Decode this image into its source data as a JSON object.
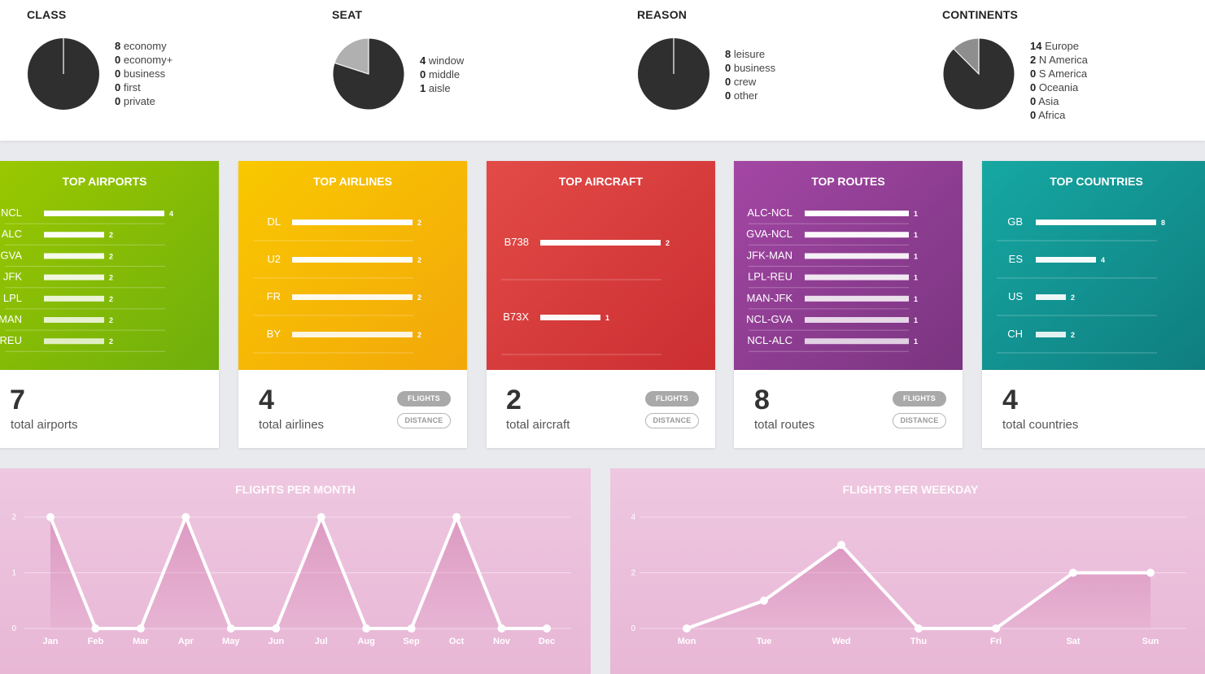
{
  "stats": [
    {
      "title": "CLASS",
      "pie": [
        8,
        0,
        0,
        0,
        0
      ],
      "items": [
        {
          "count": "8",
          "label": "economy"
        },
        {
          "count": "0",
          "label": "economy+"
        },
        {
          "count": "0",
          "label": "business"
        },
        {
          "count": "0",
          "label": "first"
        },
        {
          "count": "0",
          "label": "private"
        }
      ]
    },
    {
      "title": "SEAT",
      "pie": [
        4,
        0,
        1
      ],
      "items": [
        {
          "count": "4",
          "label": "window"
        },
        {
          "count": "0",
          "label": "middle"
        },
        {
          "count": "1",
          "label": "aisle"
        }
      ]
    },
    {
      "title": "REASON",
      "pie": [
        8,
        0,
        0,
        0
      ],
      "items": [
        {
          "count": "8",
          "label": "leisure"
        },
        {
          "count": "0",
          "label": "business"
        },
        {
          "count": "0",
          "label": "crew"
        },
        {
          "count": "0",
          "label": "other"
        }
      ]
    },
    {
      "title": "CONTINENTS",
      "pie": [
        14,
        2,
        0,
        0,
        0,
        0
      ],
      "items": [
        {
          "count": "14",
          "label": "Europe"
        },
        {
          "count": "2",
          "label": "N America"
        },
        {
          "count": "0",
          "label": "S America"
        },
        {
          "count": "0",
          "label": "Oceania"
        },
        {
          "count": "0",
          "label": "Asia"
        },
        {
          "count": "0",
          "label": "Africa"
        }
      ]
    }
  ],
  "cards": [
    {
      "title": "TOP AIRPORTS",
      "total": "7",
      "total_label": "total airports",
      "has_toggle": false,
      "color_top": "#9bc900",
      "color_bottom": "#6fae0c",
      "rows": [
        {
          "label": "NCL",
          "value": 4
        },
        {
          "label": "ALC",
          "value": 2
        },
        {
          "label": "GVA",
          "value": 2
        },
        {
          "label": "JFK",
          "value": 2
        },
        {
          "label": "LPL",
          "value": 2
        },
        {
          "label": "MAN",
          "value": 2
        },
        {
          "label": "REU",
          "value": 2
        }
      ]
    },
    {
      "title": "TOP AIRLINES",
      "total": "4",
      "total_label": "total airlines",
      "has_toggle": true,
      "color_top": "#f9c800",
      "color_bottom": "#f3a70a",
      "rows": [
        {
          "label": "DL",
          "value": 2
        },
        {
          "label": "U2",
          "value": 2
        },
        {
          "label": "FR",
          "value": 2
        },
        {
          "label": "BY",
          "value": 2
        }
      ]
    },
    {
      "title": "TOP AIRCRAFT",
      "total": "2",
      "total_label": "total aircraft",
      "has_toggle": true,
      "color_top": "#e24b47",
      "color_bottom": "#cc2e31",
      "rows": [
        {
          "label": "B738",
          "value": 2
        },
        {
          "label": "B73X",
          "value": 1
        }
      ]
    },
    {
      "title": "TOP ROUTES",
      "total": "8",
      "total_label": "total routes",
      "has_toggle": true,
      "color_top": "#a347a4",
      "color_bottom": "#7a3480",
      "rows": [
        {
          "label": "ALC-NCL",
          "value": 1
        },
        {
          "label": "GVA-NCL",
          "value": 1
        },
        {
          "label": "JFK-MAN",
          "value": 1
        },
        {
          "label": "LPL-REU",
          "value": 1
        },
        {
          "label": "MAN-JFK",
          "value": 1
        },
        {
          "label": "NCL-GVA",
          "value": 1
        },
        {
          "label": "NCL-ALC",
          "value": 1
        }
      ]
    },
    {
      "title": "TOP COUNTRIES",
      "total": "4",
      "total_label": "total countries",
      "has_toggle": false,
      "color_top": "#16a8a3",
      "color_bottom": "#0f7d7f",
      "rows": [
        {
          "label": "GB",
          "value": 8
        },
        {
          "label": "ES",
          "value": 4
        },
        {
          "label": "US",
          "value": 2
        },
        {
          "label": "CH",
          "value": 2
        }
      ]
    }
  ],
  "toggle": {
    "flights": "FLIGHTS",
    "distance": "DISTANCE"
  },
  "chart_data": [
    {
      "type": "line",
      "title": "FLIGHTS PER MONTH",
      "categories": [
        "Jan",
        "Feb",
        "Mar",
        "Apr",
        "May",
        "Jun",
        "Jul",
        "Aug",
        "Sep",
        "Oct",
        "Nov",
        "Dec"
      ],
      "values": [
        2,
        0,
        0,
        2,
        0,
        0,
        2,
        0,
        0,
        2,
        0,
        0
      ],
      "ylim": [
        0,
        2
      ],
      "yticks": [
        "0",
        "1",
        "2"
      ],
      "grid": true
    },
    {
      "type": "line",
      "title": "FLIGHTS PER WEEKDAY",
      "categories": [
        "Mon",
        "Tue",
        "Wed",
        "Thu",
        "Fri",
        "Sat",
        "Sun"
      ],
      "values": [
        0,
        1,
        3,
        0,
        0,
        2,
        2
      ],
      "ylim": [
        0,
        4
      ],
      "yticks": [
        "0",
        "2",
        "4"
      ],
      "grid": true
    }
  ],
  "colors": {
    "pie_dark": "#2f2f2f",
    "pie_light": "#8e8e8e",
    "chart_panel": "#ebbfdc",
    "line": "#ffffff"
  }
}
